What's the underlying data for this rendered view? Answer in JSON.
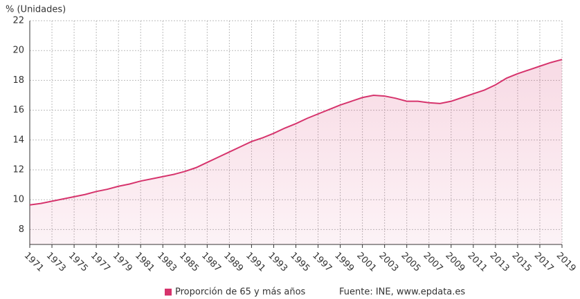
{
  "chart_data": {
    "type": "line",
    "y_axis_label": "% (Unidades)",
    "source": "Fuente: INE, www.epdata.es",
    "x": [
      1971,
      1972,
      1973,
      1974,
      1975,
      1976,
      1977,
      1978,
      1979,
      1980,
      1981,
      1982,
      1983,
      1984,
      1985,
      1986,
      1987,
      1988,
      1989,
      1990,
      1991,
      1992,
      1993,
      1994,
      1995,
      1996,
      1997,
      1998,
      1999,
      2000,
      2001,
      2002,
      2003,
      2004,
      2005,
      2006,
      2007,
      2008,
      2009,
      2010,
      2011,
      2012,
      2013,
      2014,
      2015,
      2016,
      2017,
      2018,
      2019
    ],
    "series": [
      {
        "name": "Proporción de 65 y más años",
        "color": "#d6336c",
        "values": [
          9.65,
          9.75,
          9.9,
          10.05,
          10.2,
          10.35,
          10.55,
          10.7,
          10.9,
          11.05,
          11.25,
          11.4,
          11.55,
          11.7,
          11.9,
          12.15,
          12.5,
          12.85,
          13.2,
          13.55,
          13.9,
          14.15,
          14.45,
          14.8,
          15.1,
          15.45,
          15.75,
          16.05,
          16.35,
          16.6,
          16.85,
          17.0,
          16.95,
          16.8,
          16.6,
          16.6,
          16.5,
          16.45,
          16.6,
          16.85,
          17.1,
          17.35,
          17.7,
          18.15,
          18.45,
          18.7,
          18.95,
          19.2,
          19.4
        ]
      }
    ],
    "xlim": [
      1971,
      2019
    ],
    "xticks": [
      1971,
      1973,
      1975,
      1977,
      1979,
      1981,
      1983,
      1985,
      1987,
      1989,
      1991,
      1993,
      1995,
      1997,
      1999,
      2001,
      2003,
      2005,
      2007,
      2009,
      2011,
      2013,
      2015,
      2017,
      2019
    ],
    "ylim": [
      7,
      22
    ],
    "yticks": [
      8,
      10,
      12,
      14,
      16,
      18,
      20,
      22
    ],
    "grid": true
  }
}
